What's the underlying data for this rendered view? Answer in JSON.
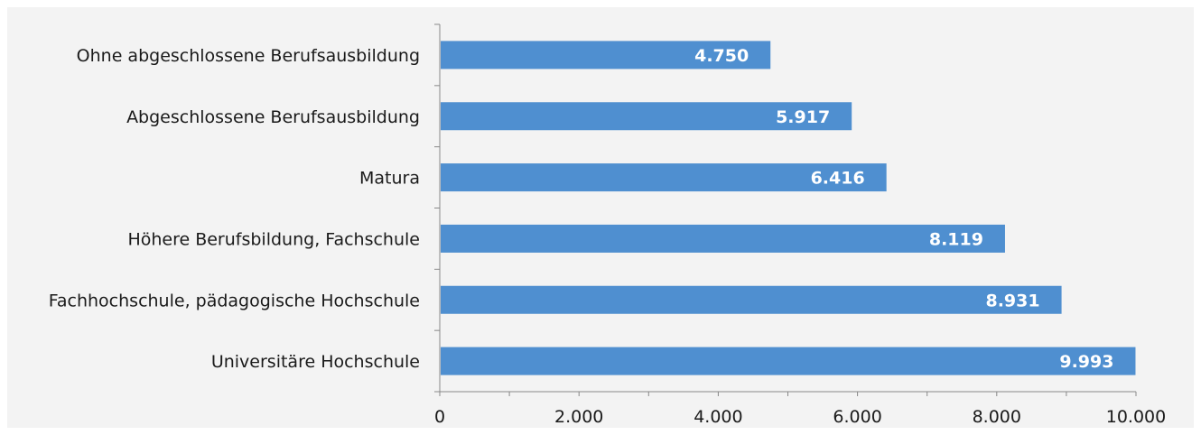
{
  "chart_data": {
    "type": "bar",
    "orientation": "horizontal",
    "categories": [
      "Ohne abgeschlossene Berufsausbildung",
      "Abgeschlossene Berufsausbildung",
      "Matura",
      "Höhere Berufsbildung, Fachschule",
      "Fachhochschule, pädagogische Hochschule",
      "Universitäre Hochschule"
    ],
    "values": [
      4750,
      5917,
      6416,
      8119,
      8931,
      9993
    ],
    "value_labels": [
      "4.750",
      "5.917",
      "6.416",
      "8.119",
      "8.931",
      "9.993"
    ],
    "xlim": [
      0,
      10000
    ],
    "x_ticks": [
      0,
      2000,
      4000,
      6000,
      8000,
      10000
    ],
    "x_tick_labels": [
      "0",
      "2.000",
      "4.000",
      "6.000",
      "8.000",
      "10.000"
    ],
    "title": "",
    "xlabel": "",
    "ylabel": "",
    "grid": false,
    "legend": "none",
    "bar_color": "#4f8fd0",
    "background_color": "#f3f3f3",
    "axis_color": "#888888"
  }
}
